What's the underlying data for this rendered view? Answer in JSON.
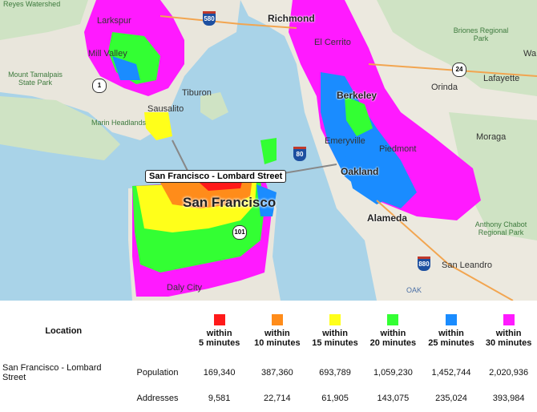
{
  "map": {
    "origin_label": "San Francisco - Lombard Street",
    "cities": {
      "richmond": "Richmond",
      "berkeley": "Berkeley",
      "oakland": "Oakland",
      "alameda": "Alameda",
      "san_francisco": "San Francisco",
      "el_cerrito": "El Cerrito",
      "emeryville": "Emeryville",
      "piedmont": "Piedmont",
      "orinda": "Orinda",
      "lafayette": "Lafayette",
      "moraga": "Moraga",
      "san_leandro": "San Leandro",
      "mill_valley": "Mill Valley",
      "larkspur": "Larkspur",
      "sausalito": "Sausalito",
      "tiburon": "Tiburon",
      "daly_city": "Daly City",
      "oak": "OAK",
      "wa": "Wa"
    },
    "parks": {
      "watershed": "Reyes Watershed",
      "tamalpais": "Mount Tamalpais State Park",
      "marin": "Marin Headlands",
      "briones": "Briones Regional Park",
      "anthony": "Anthony Chabot Regional Park"
    },
    "shields": {
      "i580": "580",
      "i80": "80",
      "i880": "880",
      "us101": "101",
      "ca24": "24",
      "ca1": "1"
    }
  },
  "legend": {
    "location_header": "Location",
    "columns": [
      {
        "line1": "within",
        "line2": "5 minutes",
        "color": "#ff1a1a"
      },
      {
        "line1": "within",
        "line2": "10 minutes",
        "color": "#ff8c1a"
      },
      {
        "line1": "within",
        "line2": "15 minutes",
        "color": "#ffff1a"
      },
      {
        "line1": "within",
        "line2": "20 minutes",
        "color": "#33ff33"
      },
      {
        "line1": "within",
        "line2": "25 minutes",
        "color": "#1a8cff"
      },
      {
        "line1": "within",
        "line2": "30 minutes",
        "color": "#ff1aff"
      }
    ],
    "rows": [
      {
        "location": "San Francisco - Lombard Street",
        "metric": "Population",
        "values": [
          "169,340",
          "387,360",
          "693,789",
          "1,059,230",
          "1,452,744",
          "2,020,936"
        ]
      },
      {
        "location": "",
        "metric": "Addresses",
        "values": [
          "9,581",
          "22,714",
          "61,905",
          "143,075",
          "235,024",
          "393,984"
        ]
      }
    ]
  }
}
